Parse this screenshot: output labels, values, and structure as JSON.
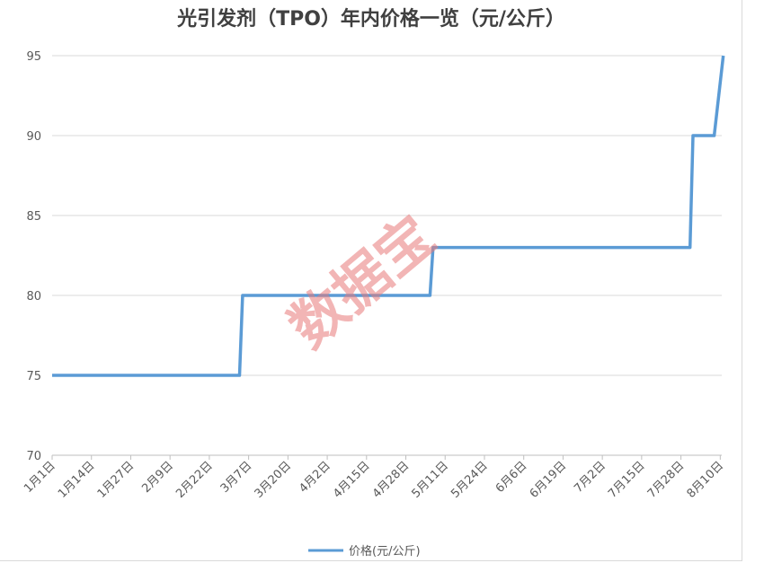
{
  "chart_data": {
    "type": "line",
    "title": "光引发剂（TPO）年内价格一览（元/公斤）",
    "xlabel": "",
    "ylabel": "",
    "ylim": [
      70,
      95
    ],
    "yticks": [
      70,
      75,
      80,
      85,
      90,
      95
    ],
    "categories": [
      "1月1日",
      "1月14日",
      "1月27日",
      "2月9日",
      "2月22日",
      "3月7日",
      "3月20日",
      "4月2日",
      "4月15日",
      "4月28日",
      "5月11日",
      "5月24日",
      "6月6日",
      "6月19日",
      "7月2日",
      "7月15日",
      "7月28日",
      "8月10日"
    ],
    "series": [
      {
        "name": "价格(元/公斤)",
        "color": "#5b9bd5",
        "points": [
          {
            "date": "1月1日",
            "value": 75
          },
          {
            "date": "3月4日",
            "value": 75
          },
          {
            "date": "3月5日",
            "value": 80
          },
          {
            "date": "5月6日",
            "value": 80
          },
          {
            "date": "5月7日",
            "value": 83
          },
          {
            "date": "7月31日",
            "value": 83
          },
          {
            "date": "8月1日",
            "value": 90
          },
          {
            "date": "8月8日",
            "value": 90
          },
          {
            "date": "8月11日",
            "value": 95
          }
        ]
      }
    ],
    "grid": true,
    "legend": "bottom"
  },
  "watermark": "数据宝"
}
